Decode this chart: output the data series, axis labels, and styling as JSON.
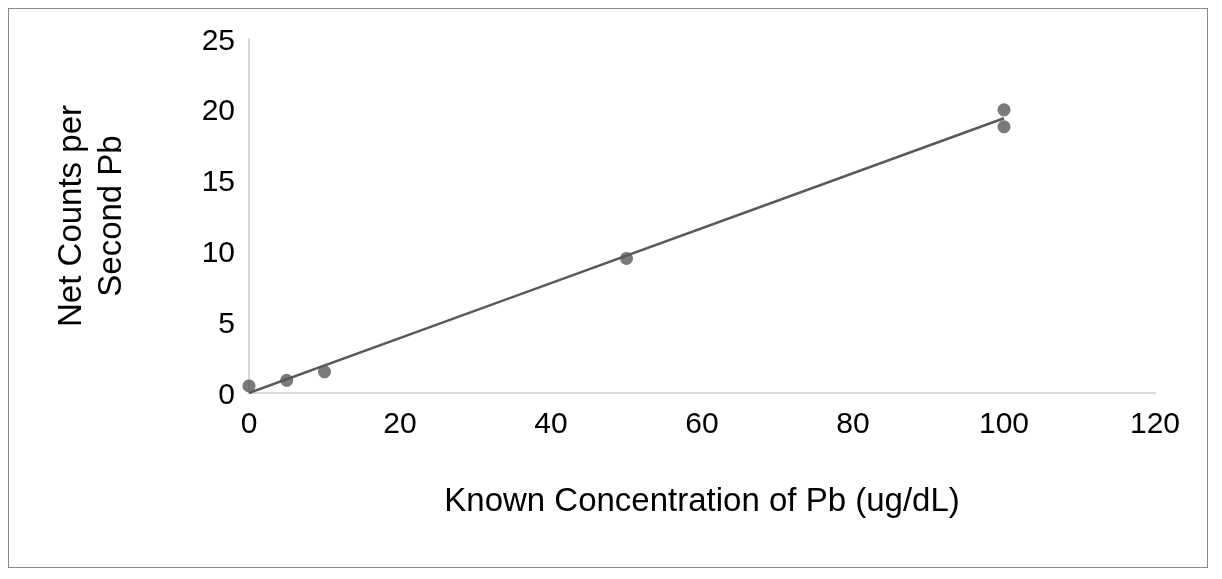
{
  "chart_data": {
    "type": "scatter",
    "xlabel": "Known Concentration of Pb (ug/dL)",
    "ylabel": "Net Counts per\nSecond Pb",
    "xlim": [
      0,
      120
    ],
    "xticks": [
      0,
      20,
      40,
      60,
      80,
      100,
      120
    ],
    "ylim": [
      0,
      25
    ],
    "yticks": [
      0,
      5,
      10,
      15,
      20,
      25
    ],
    "grid": false,
    "series": [
      {
        "marker": "circle",
        "color": "#595959",
        "x": [
          0,
          5,
          10,
          50,
          100,
          100
        ],
        "values": [
          0.5,
          0.9,
          1.5,
          9.5,
          20.0,
          18.8
        ]
      },
      {
        "type": "line",
        "color": "#595959",
        "x": [
          0,
          100
        ],
        "values": [
          0,
          19.4
        ]
      }
    ]
  }
}
